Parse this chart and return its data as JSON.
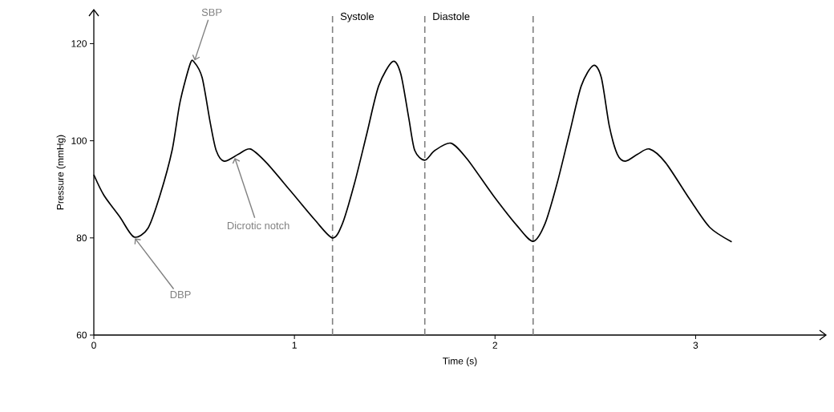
{
  "chart_data": {
    "type": "line",
    "xlabel": "Time (s)",
    "ylabel": "Pressure (mmHg)",
    "x": [
      0,
      0.05,
      0.13,
      0.2,
      0.27,
      0.33,
      0.39,
      0.43,
      0.48,
      0.5,
      0.54,
      0.58,
      0.61,
      0.65,
      0.72,
      0.78,
      0.86,
      0.98,
      1.1,
      1.19,
      1.24,
      1.3,
      1.36,
      1.42,
      1.49,
      1.53,
      1.57,
      1.6,
      1.65,
      1.7,
      1.78,
      1.86,
      1.99,
      2.11,
      2.19,
      2.25,
      2.31,
      2.37,
      2.43,
      2.49,
      2.53,
      2.57,
      2.61,
      2.65,
      2.71,
      2.77,
      2.85,
      2.97,
      3.07,
      3.18
    ],
    "values": [
      93,
      88.8,
      84.3,
      80.2,
      82,
      88.8,
      98,
      108,
      115.8,
      116.2,
      113,
      103.8,
      98,
      95.8,
      97.2,
      98.3,
      95.5,
      89.7,
      83.8,
      80,
      83,
      91.3,
      101.3,
      111.3,
      116.3,
      113.8,
      104.7,
      98,
      96,
      98,
      99.5,
      96.3,
      88.8,
      82.5,
      79.3,
      83,
      91.3,
      101.3,
      111.3,
      115.5,
      113,
      103,
      97.2,
      95.8,
      97.2,
      98.3,
      95.5,
      88,
      82.2,
      79.2
    ],
    "color": "#000000",
    "marker": "none",
    "line_style": "solid",
    "xlim": [
      0,
      3.65
    ],
    "ylim": [
      60,
      127
    ],
    "xticks": [
      0,
      1,
      2,
      3
    ],
    "yticks": [
      60,
      80,
      100,
      120
    ],
    "ref_lines": [
      {
        "axis": "x",
        "value": 1.19,
        "label": "Systole",
        "color": "#808080",
        "line_style": "dashed"
      },
      {
        "axis": "x",
        "value": 1.65,
        "label": "Diastole",
        "color": "#808080",
        "line_style": "dashed"
      },
      {
        "axis": "x",
        "value": 2.19,
        "label": null,
        "color": "#808080",
        "line_style": "dashed"
      }
    ],
    "annotations": [
      {
        "text": "SBP",
        "x": 0.5,
        "y": 116.2
      },
      {
        "text": "DBP",
        "x": 0.2,
        "y": 80.2
      },
      {
        "text": "Dicrotic notch",
        "x": 0.7,
        "y": 96.8
      }
    ],
    "grid": false
  }
}
